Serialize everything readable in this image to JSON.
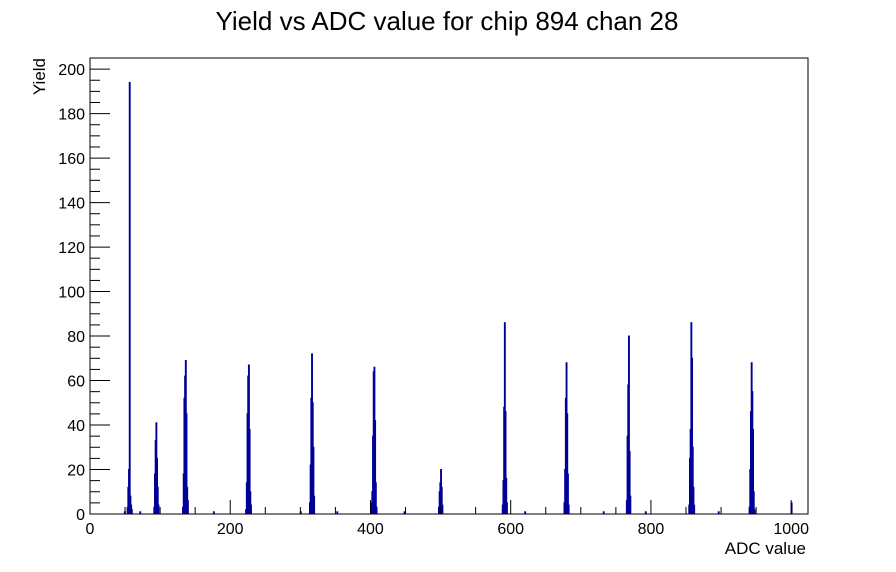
{
  "chart_data": {
    "type": "bar",
    "title": "Yield vs ADC value for chip 894 chan 28",
    "xlabel": "ADC value",
    "ylabel": "Yield",
    "xlim": [
      0,
      1024
    ],
    "ylim": [
      0,
      205
    ],
    "grid": false,
    "legend": "none",
    "series_color": "#000099",
    "xticks": [
      0,
      200,
      400,
      600,
      800,
      1000
    ],
    "yticks": [
      0,
      20,
      40,
      60,
      80,
      100,
      120,
      140,
      160,
      180,
      200
    ],
    "bins": [
      [
        49,
        1
      ],
      [
        53,
        3
      ],
      [
        54,
        12
      ],
      [
        55,
        20
      ],
      [
        56,
        194
      ],
      [
        57,
        8
      ],
      [
        58,
        4
      ],
      [
        59,
        2
      ],
      [
        71,
        1
      ],
      [
        91,
        3
      ],
      [
        92,
        18
      ],
      [
        93,
        33
      ],
      [
        94,
        41
      ],
      [
        95,
        25
      ],
      [
        96,
        12
      ],
      [
        97,
        4
      ],
      [
        132,
        3
      ],
      [
        133,
        18
      ],
      [
        134,
        52
      ],
      [
        135,
        62
      ],
      [
        136,
        69
      ],
      [
        137,
        45
      ],
      [
        138,
        12
      ],
      [
        139,
        6
      ],
      [
        176,
        1
      ],
      [
        222,
        2
      ],
      [
        223,
        14
      ],
      [
        224,
        45
      ],
      [
        225,
        62
      ],
      [
        226,
        67
      ],
      [
        227,
        38
      ],
      [
        228,
        10
      ],
      [
        229,
        4
      ],
      [
        300,
        1
      ],
      [
        313,
        5
      ],
      [
        314,
        22
      ],
      [
        315,
        52
      ],
      [
        316,
        72
      ],
      [
        317,
        50
      ],
      [
        318,
        30
      ],
      [
        319,
        8
      ],
      [
        352,
        1
      ],
      [
        401,
        5
      ],
      [
        402,
        10
      ],
      [
        403,
        35
      ],
      [
        404,
        64
      ],
      [
        405,
        66
      ],
      [
        406,
        42
      ],
      [
        407,
        14
      ],
      [
        408,
        3
      ],
      [
        448,
        1
      ],
      [
        497,
        3
      ],
      [
        498,
        10
      ],
      [
        499,
        14
      ],
      [
        500,
        20
      ],
      [
        501,
        12
      ],
      [
        502,
        4
      ],
      [
        588,
        4
      ],
      [
        589,
        15
      ],
      [
        590,
        48
      ],
      [
        591,
        86
      ],
      [
        592,
        46
      ],
      [
        593,
        16
      ],
      [
        594,
        5
      ],
      [
        620,
        1
      ],
      [
        676,
        5
      ],
      [
        677,
        20
      ],
      [
        678,
        52
      ],
      [
        679,
        68
      ],
      [
        680,
        45
      ],
      [
        681,
        18
      ],
      [
        682,
        4
      ],
      [
        732,
        1
      ],
      [
        765,
        6
      ],
      [
        766,
        35
      ],
      [
        767,
        58
      ],
      [
        768,
        80
      ],
      [
        769,
        28
      ],
      [
        770,
        8
      ],
      [
        792,
        1
      ],
      [
        854,
        4
      ],
      [
        855,
        25
      ],
      [
        856,
        38
      ],
      [
        857,
        86
      ],
      [
        858,
        70
      ],
      [
        859,
        30
      ],
      [
        860,
        12
      ],
      [
        861,
        4
      ],
      [
        896,
        1
      ],
      [
        940,
        3
      ],
      [
        941,
        20
      ],
      [
        942,
        46
      ],
      [
        943,
        68
      ],
      [
        944,
        55
      ],
      [
        945,
        38
      ],
      [
        946,
        10
      ],
      [
        947,
        2
      ],
      [
        1000,
        5
      ]
    ]
  }
}
